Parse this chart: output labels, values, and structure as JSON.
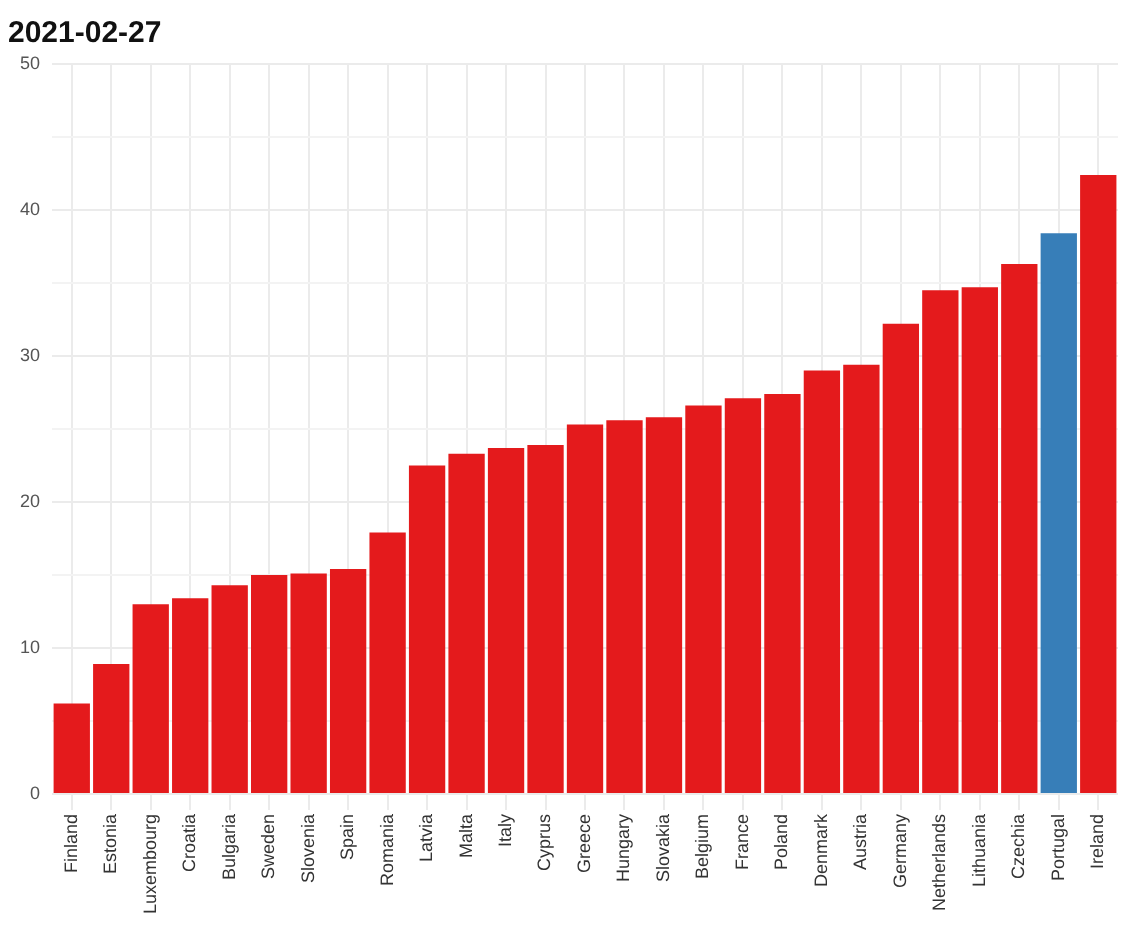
{
  "chart_data": {
    "type": "bar",
    "title": "2021-02-27",
    "categories": [
      "Finland",
      "Estonia",
      "Luxembourg",
      "Croatia",
      "Bulgaria",
      "Sweden",
      "Slovenia",
      "Spain",
      "Romania",
      "Latvia",
      "Malta",
      "Italy",
      "Cyprus",
      "Greece",
      "Hungary",
      "Slovakia",
      "Belgium",
      "France",
      "Poland",
      "Denmark",
      "Austria",
      "Germany",
      "Netherlands",
      "Lithuania",
      "Czechia",
      "Portugal",
      "Ireland"
    ],
    "values": [
      6.2,
      8.9,
      13.0,
      13.4,
      14.3,
      15.0,
      15.1,
      15.4,
      17.9,
      22.5,
      23.3,
      23.7,
      23.9,
      25.3,
      25.6,
      25.8,
      26.6,
      27.1,
      27.4,
      29.0,
      29.4,
      32.2,
      34.5,
      34.7,
      36.3,
      38.4,
      42.4
    ],
    "colors": [
      "#e41a1c",
      "#e41a1c",
      "#e41a1c",
      "#e41a1c",
      "#e41a1c",
      "#e41a1c",
      "#e41a1c",
      "#e41a1c",
      "#e41a1c",
      "#e41a1c",
      "#e41a1c",
      "#e41a1c",
      "#e41a1c",
      "#e41a1c",
      "#e41a1c",
      "#e41a1c",
      "#e41a1c",
      "#e41a1c",
      "#e41a1c",
      "#e41a1c",
      "#e41a1c",
      "#e41a1c",
      "#e41a1c",
      "#e41a1c",
      "#e41a1c",
      "#377eb8",
      "#e41a1c"
    ],
    "ylim": [
      0,
      50
    ],
    "yticks": [
      0,
      {
        "value": 5,
        "label": null
      },
      10,
      {
        "value": 15,
        "label": null
      },
      20,
      {
        "value": 25,
        "label": null
      },
      30,
      {
        "value": 35,
        "label": null
      },
      40,
      {
        "value": 45,
        "label": null
      },
      50
    ],
    "grid": true,
    "legend": false
  }
}
